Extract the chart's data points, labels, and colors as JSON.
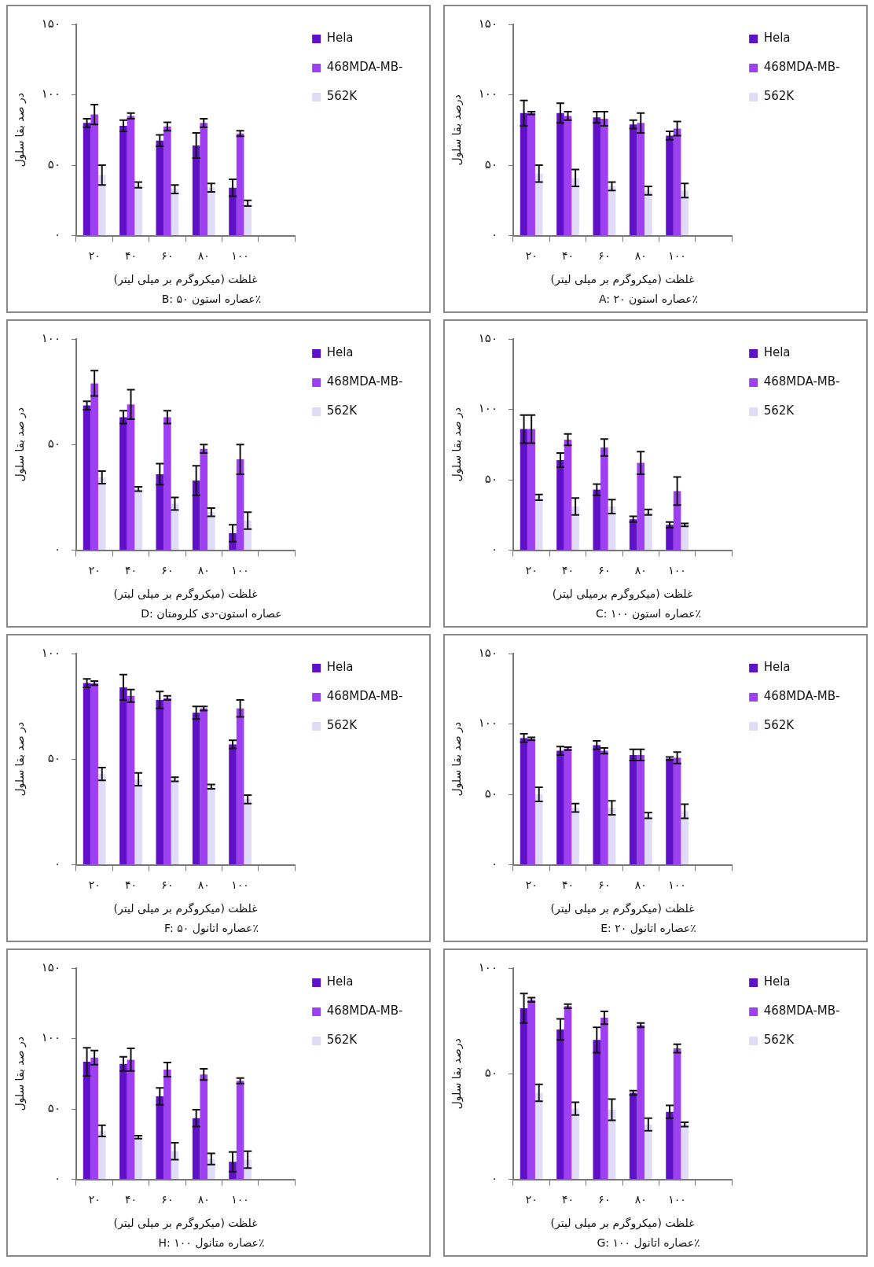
{
  "chart_data": [
    {
      "type": "bar",
      "title": "B: عصاره استون ۵۰٪",
      "xlabel": "غلظت (میکروگرم بر میلی لیتر)",
      "ylabel": "در صد بقا سلول",
      "categories": [
        "۲۰",
        "۴۰",
        "۶۰",
        "۸۰",
        "۱۰۰",
        null
      ],
      "ylim": [
        0,
        150
      ],
      "yticks": [
        {
          "value": 0,
          "label": "۰"
        },
        {
          "value": 50,
          "label": "۵۰"
        },
        {
          "value": 100,
          "label": "۱۰۰"
        },
        {
          "value": 150,
          "label": "۱۵۰"
        }
      ],
      "legend": "right",
      "series": [
        {
          "name": "Hela",
          "color": "#6010c8",
          "values": [
            80,
            78,
            67.5,
            64,
            34,
            null
          ],
          "errors": [
            3,
            4,
            4,
            9,
            6,
            null
          ]
        },
        {
          "name": "468MDA-MB-",
          "color": "#9f3ff2",
          "values": [
            86,
            85,
            77.5,
            80,
            72.5,
            null
          ],
          "errors": [
            7,
            2,
            3,
            3,
            2,
            null
          ]
        },
        {
          "name": "562K",
          "color": "#e0dcf8",
          "values": [
            43,
            36,
            33,
            34,
            23,
            null
          ],
          "errors": [
            7,
            2,
            3,
            3,
            2,
            null
          ]
        }
      ]
    },
    {
      "type": "bar",
      "title": "A: عصاره استون ۲۰٪",
      "xlabel": "غلظت (میکروگرم بر میلی لیتر)",
      "ylabel": "درصد بقا سلول",
      "categories": [
        "۲۰",
        "۴۰",
        "۶۰",
        "۸۰",
        "۱۰۰",
        null
      ],
      "ylim": [
        0,
        150
      ],
      "yticks": [
        {
          "value": 0,
          "label": "۰"
        },
        {
          "value": 50,
          "label": "۵۰"
        },
        {
          "value": 100,
          "label": "۱۰۰"
        },
        {
          "value": 150,
          "label": "۱۵۰"
        }
      ],
      "legend": "right",
      "series": [
        {
          "name": "Hela",
          "color": "#6010c8",
          "values": [
            87,
            87,
            84,
            79,
            71,
            null
          ],
          "errors": [
            9,
            7,
            4,
            3,
            3,
            null
          ]
        },
        {
          "name": "468MDA-MB-",
          "color": "#9f3ff2",
          "values": [
            87,
            85,
            83,
            80,
            76,
            null
          ],
          "errors": [
            1,
            3,
            5,
            7,
            5,
            null
          ]
        },
        {
          "name": "562K",
          "color": "#e0dcf8",
          "values": [
            44,
            41,
            35,
            32,
            32,
            null
          ],
          "errors": [
            6,
            6,
            3,
            3,
            5,
            null
          ]
        }
      ]
    },
    {
      "type": "bar",
      "title": "D: عصاره استون-دی کلرومتان",
      "xlabel": "غلظت (میکروگرم بر میلی لیتر)",
      "ylabel": "در صد بقا سلول",
      "categories": [
        "۲۰",
        "۴۰",
        "۶۰",
        "۸۰",
        "۱۰۰",
        null
      ],
      "ylim": [
        0,
        100
      ],
      "yticks": [
        {
          "value": 0,
          "label": "۰"
        },
        {
          "value": 50,
          "label": "۵۰"
        },
        {
          "value": 100,
          "label": "۱۰۰"
        }
      ],
      "legend": "right",
      "series": [
        {
          "name": "Hela",
          "color": "#6010c8",
          "values": [
            68.5,
            63,
            36,
            33,
            8,
            null
          ],
          "errors": [
            2,
            3,
            5,
            7,
            4,
            null
          ]
        },
        {
          "name": "468MDA-MB-",
          "color": "#9f3ff2",
          "values": [
            79,
            69,
            63,
            48,
            43,
            null
          ],
          "errors": [
            6,
            7,
            3,
            2,
            7,
            null
          ]
        },
        {
          "name": "562K",
          "color": "#e0dcf8",
          "values": [
            34.5,
            29,
            22,
            18,
            14,
            null
          ],
          "errors": [
            3,
            1,
            3,
            2,
            4,
            null
          ]
        }
      ]
    },
    {
      "type": "bar",
      "title": "C: عصاره استون ۱۰۰٪",
      "xlabel": "غلظت (میکروگرم برمیلی لیتر)",
      "ylabel": "در صد بقا سلول",
      "categories": [
        "۲۰",
        "۴۰",
        "۶۰",
        "۸۰",
        "۱۰۰",
        null
      ],
      "ylim": [
        0,
        150
      ],
      "yticks": [
        {
          "value": 0,
          "label": "۰"
        },
        {
          "value": 50,
          "label": "۵۰"
        },
        {
          "value": 100,
          "label": "۱۰۰"
        },
        {
          "value": 150,
          "label": "۱۵۰"
        }
      ],
      "legend": "right",
      "series": [
        {
          "name": "Hela",
          "color": "#6010c8",
          "values": [
            86,
            64,
            43,
            22,
            18,
            null
          ],
          "errors": [
            10,
            5,
            4,
            2,
            2,
            null
          ]
        },
        {
          "name": "468MDA-MB-",
          "color": "#9f3ff2",
          "values": [
            86,
            78.5,
            73,
            62,
            42,
            null
          ],
          "errors": [
            10,
            4,
            6,
            8,
            10,
            null
          ]
        },
        {
          "name": "562K",
          "color": "#e0dcf8",
          "values": [
            37.5,
            31,
            31,
            27,
            18,
            null
          ],
          "errors": [
            2,
            6,
            5,
            2,
            1,
            null
          ]
        }
      ]
    },
    {
      "type": "bar",
      "title": "F: عصاره اتانول ۵۰٪",
      "xlabel": "غلظت (میکروگرم بر میلی لیتر)",
      "ylabel": "در صد بقا سلول",
      "categories": [
        "۲۰",
        "۴۰",
        "۶۰",
        "۸۰",
        "۱۰۰",
        null
      ],
      "ylim": [
        0,
        100
      ],
      "yticks": [
        {
          "value": 0,
          "label": "۰"
        },
        {
          "value": 50,
          "label": "۵۰"
        },
        {
          "value": 100,
          "label": "۱۰۰"
        }
      ],
      "legend": "right",
      "series": [
        {
          "name": "Hela",
          "color": "#6010c8",
          "values": [
            86,
            84,
            78,
            72,
            57,
            null
          ],
          "errors": [
            2,
            6,
            4,
            3,
            2,
            null
          ]
        },
        {
          "name": "468MDA-MB-",
          "color": "#9f3ff2",
          "values": [
            86,
            80,
            79,
            74,
            74,
            null
          ],
          "errors": [
            1,
            3,
            1,
            1,
            4,
            null
          ]
        },
        {
          "name": "562K",
          "color": "#e0dcf8",
          "values": [
            43,
            40.5,
            40.5,
            37,
            31,
            null
          ],
          "errors": [
            3,
            3,
            1,
            1,
            2,
            null
          ]
        }
      ]
    },
    {
      "type": "bar",
      "title": "E: عصاره اتانول ۲۰٪",
      "xlabel": "غلظت (میکروگرم بر میلی لیتر)",
      "ylabel": "در صد بقا سلول",
      "categories": [
        "۲۰",
        "۴۰",
        "۶۰",
        "۸۰",
        "۱۰۰",
        null
      ],
      "ylim": [
        0,
        150
      ],
      "yticks": [
        {
          "value": 0,
          "label": "۰"
        },
        {
          "value": 50,
          "label": "۵۰"
        },
        {
          "value": 100,
          "label": "۱۰۰"
        },
        {
          "value": 150,
          "label": "۱۵۰"
        }
      ],
      "legend": "right",
      "series": [
        {
          "name": "Hela",
          "color": "#6010c8",
          "values": [
            90,
            81,
            85,
            78,
            75.5,
            null
          ],
          "errors": [
            3,
            3,
            3,
            4,
            1,
            null
          ]
        },
        {
          "name": "468MDA-MB-",
          "color": "#9f3ff2",
          "values": [
            89.5,
            82.5,
            81,
            78,
            76,
            null
          ],
          "errors": [
            1,
            1,
            2,
            4,
            4,
            null
          ]
        },
        {
          "name": "562K",
          "color": "#e0dcf8",
          "values": [
            50,
            40.5,
            40.5,
            35,
            38,
            null
          ],
          "errors": [
            5,
            3,
            5,
            2,
            5,
            null
          ]
        }
      ]
    },
    {
      "type": "bar",
      "title": "H: عصاره متانول ۱۰۰٪",
      "xlabel": "غلظت (میکروگرم بر میلی لیتر)",
      "ylabel": "در صد بقا سلول",
      "categories": [
        "۲۰",
        "۴۰",
        "۶۰",
        "۸۰",
        "۱۰۰",
        null
      ],
      "ylim": [
        0,
        150
      ],
      "yticks": [
        {
          "value": 0,
          "label": "۰"
        },
        {
          "value": 50,
          "label": "۵۰"
        },
        {
          "value": 100,
          "label": "۱۰۰"
        },
        {
          "value": 150,
          "label": "۱۵۰"
        }
      ],
      "legend": "right",
      "series": [
        {
          "name": "Hela",
          "color": "#6010c8",
          "values": [
            83.5,
            82,
            59,
            43.5,
            12.5,
            null
          ],
          "errors": [
            10,
            5,
            6,
            6,
            7,
            null
          ]
        },
        {
          "name": "468MDA-MB-",
          "color": "#9f3ff2",
          "values": [
            86.5,
            85,
            78,
            74.5,
            70,
            null
          ],
          "errors": [
            5,
            8,
            5,
            4,
            2,
            null
          ]
        },
        {
          "name": "562K",
          "color": "#e0dcf8",
          "values": [
            34.5,
            30,
            20,
            14.5,
            14,
            null
          ],
          "errors": [
            4,
            1,
            6,
            4,
            6,
            null
          ]
        }
      ]
    },
    {
      "type": "bar",
      "title": "G: عصاره اتانول ۱۰۰٪",
      "xlabel": "غلظت (میکروگرم بر میلی لیتر)",
      "ylabel": "درصد بقا سلول",
      "categories": [
        "۲۰",
        "۴۰",
        "۶۰",
        "۸۰",
        "۱۰۰",
        null
      ],
      "ylim": [
        0,
        100
      ],
      "yticks": [
        {
          "value": 0,
          "label": "۰"
        },
        {
          "value": 50,
          "label": "۵۰"
        },
        {
          "value": 100,
          "label": "۱۰۰"
        }
      ],
      "legend": "right",
      "series": [
        {
          "name": "Hela",
          "color": "#6010c8",
          "values": [
            81,
            71,
            66,
            41,
            32,
            null
          ],
          "errors": [
            7,
            5,
            6,
            1,
            3,
            null
          ]
        },
        {
          "name": "468MDA-MB-",
          "color": "#9f3ff2",
          "values": [
            85,
            82,
            76.5,
            73,
            62,
            null
          ],
          "errors": [
            1,
            1,
            3,
            1,
            2,
            null
          ]
        },
        {
          "name": "562K",
          "color": "#e0dcf8",
          "values": [
            41,
            33.5,
            33,
            26,
            26,
            null
          ],
          "errors": [
            4,
            3,
            5,
            3,
            1,
            null
          ]
        }
      ]
    }
  ]
}
